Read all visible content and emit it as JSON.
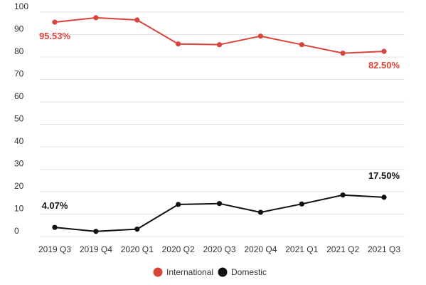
{
  "colors": {
    "international": "#d9453a",
    "domestic": "#111111",
    "grid": "#e3e3e3",
    "text": "#333333"
  },
  "chart_data": {
    "type": "line",
    "title": "",
    "xlabel": "",
    "ylabel": "",
    "ylim": [
      0,
      100
    ],
    "yticks": [
      0,
      10,
      20,
      30,
      40,
      50,
      60,
      70,
      80,
      90,
      100
    ],
    "grid": true,
    "legend_position": "bottom",
    "categories": [
      "2019 Q3",
      "2019 Q4",
      "2020 Q1",
      "2020 Q2",
      "2020 Q3",
      "2020 Q4",
      "2021 Q1",
      "2021 Q2",
      "2021 Q3"
    ],
    "series": [
      {
        "name": "International",
        "color": "#d9453a",
        "values": [
          95.53,
          97.5,
          96.5,
          85.8,
          85.5,
          89.3,
          85.5,
          81.7,
          82.5
        ]
      },
      {
        "name": "Domestic",
        "color": "#111111",
        "values": [
          4.07,
          2.3,
          3.3,
          14.3,
          14.7,
          10.8,
          14.5,
          18.5,
          17.5
        ]
      }
    ],
    "annotations": [
      {
        "series": 0,
        "index": 0,
        "text": "95.53%"
      },
      {
        "series": 0,
        "index": 8,
        "text": "82.50%"
      },
      {
        "series": 1,
        "index": 0,
        "text": "4.07%"
      },
      {
        "series": 1,
        "index": 8,
        "text": "17.50%"
      }
    ]
  }
}
